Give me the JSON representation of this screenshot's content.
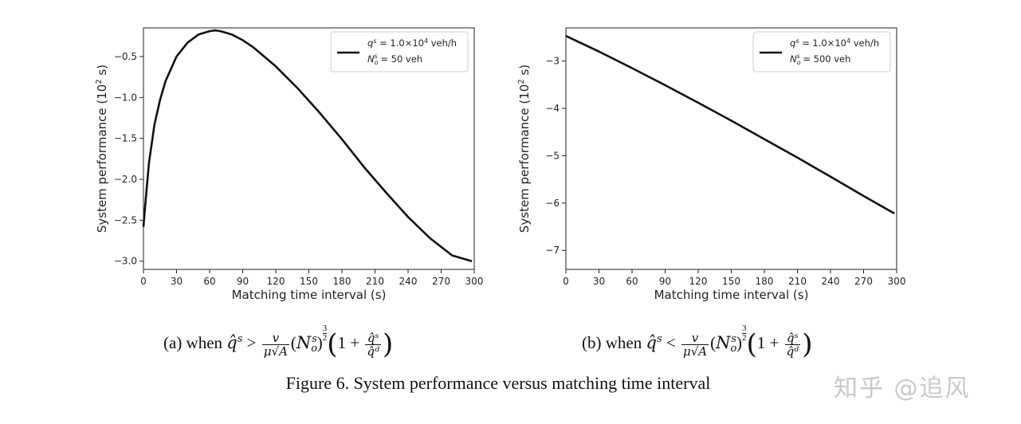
{
  "chart_data": [
    {
      "type": "line",
      "xlabel": "Matching time interval (s)",
      "ylabel_main": "System performance (10",
      "ylabel_sup": "2",
      "ylabel_tail": " s)",
      "xlim": [
        0,
        300
      ],
      "ylim": [
        -3.1,
        -0.15
      ],
      "xticks": [
        0,
        30,
        60,
        90,
        120,
        150,
        180,
        210,
        240,
        270,
        300
      ],
      "yticks": [
        -0.5,
        -1.0,
        -1.5,
        -2.0,
        -2.5,
        -3.0
      ],
      "ytick_labels": [
        "−0.5",
        "−1.0",
        "−1.5",
        "−2.0",
        "−2.5",
        "−3.0"
      ],
      "legend": {
        "placement": "top-right",
        "line1": "q^s = 1.0×10^4 veh/h",
        "line2": "N_o^s = 50 veh"
      },
      "series": [
        {
          "x": [
            0,
            2,
            5,
            10,
            15,
            20,
            30,
            40,
            50,
            60,
            65,
            70,
            80,
            90,
            100,
            120,
            140,
            160,
            180,
            200,
            220,
            240,
            260,
            280,
            298
          ],
          "y": [
            -2.58,
            -2.25,
            -1.8,
            -1.33,
            -1.03,
            -0.8,
            -0.5,
            -0.33,
            -0.23,
            -0.19,
            -0.18,
            -0.19,
            -0.23,
            -0.3,
            -0.39,
            -0.62,
            -0.89,
            -1.19,
            -1.51,
            -1.85,
            -2.16,
            -2.46,
            -2.72,
            -2.93,
            -3.0
          ]
        }
      ]
    },
    {
      "type": "line",
      "xlabel": "Matching time interval (s)",
      "ylabel_main": "System performance (10",
      "ylabel_sup": "2",
      "ylabel_tail": " s)",
      "xlim": [
        0,
        300
      ],
      "ylim": [
        -7.4,
        -2.3
      ],
      "xticks": [
        0,
        30,
        60,
        90,
        120,
        150,
        180,
        210,
        240,
        270,
        300
      ],
      "yticks": [
        -3,
        -4,
        -5,
        -6,
        -7
      ],
      "ytick_labels": [
        "−3",
        "−4",
        "−5",
        "−6",
        "−7"
      ],
      "legend": {
        "placement": "top-right",
        "line1": "q^s = 1.0×10^4 veh/h",
        "line2": "N_o^s = 500 veh"
      },
      "series": [
        {
          "x": [
            0,
            30,
            60,
            90,
            120,
            150,
            180,
            210,
            240,
            270,
            298
          ],
          "y": [
            -2.47,
            -2.8,
            -3.15,
            -3.51,
            -3.88,
            -4.26,
            -4.65,
            -5.04,
            -5.44,
            -5.85,
            -6.22
          ]
        }
      ]
    }
  ],
  "captions": {
    "a_prefix": "(a)  when ",
    "b_prefix": "(b)  when ",
    "var": "q̂",
    "sup_s": "s",
    "gt": " > ",
    "lt": " < ",
    "frac_num": "v",
    "frac_den": "μ√A",
    "paren_inner_open": "(",
    "N": "N",
    "sub_o": "o",
    "paren_inner_close": ")",
    "exp_num": "3",
    "exp_den": "2",
    "big_open": "(",
    "one_plus": "1 + ",
    "ratio_num": "q̂ˢ",
    "ratio_den": "q̂ᵈ",
    "big_close": ")"
  },
  "figure_caption": "Figure 6. System performance versus matching time interval",
  "watermark": "知乎 @追风"
}
